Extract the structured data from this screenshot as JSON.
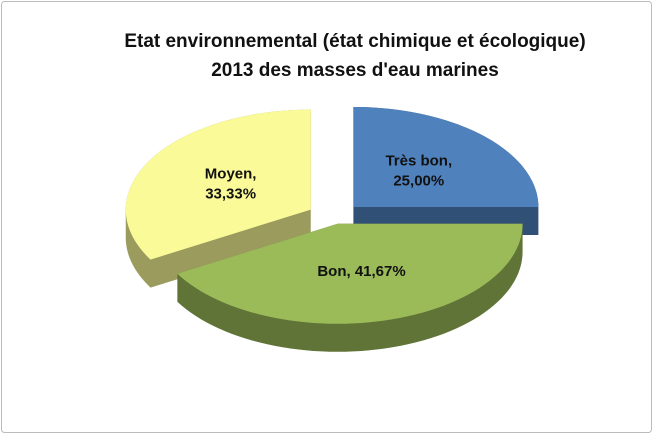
{
  "chart_data": {
    "type": "pie3d",
    "title": [
      "Etat environnemental (état chimique  et écologique)",
      "2013 des masses d'eau marines"
    ],
    "values": [
      25,
      41.67,
      33.33
    ],
    "value_labels": [
      [
        "Très bon,",
        "25,00%"
      ],
      [
        "Bon, 41,67%"
      ],
      [
        "Moyen,",
        "33,33%"
      ]
    ],
    "colors": [
      "#4f81bd",
      "#9bbb59",
      "#fafa98"
    ]
  }
}
